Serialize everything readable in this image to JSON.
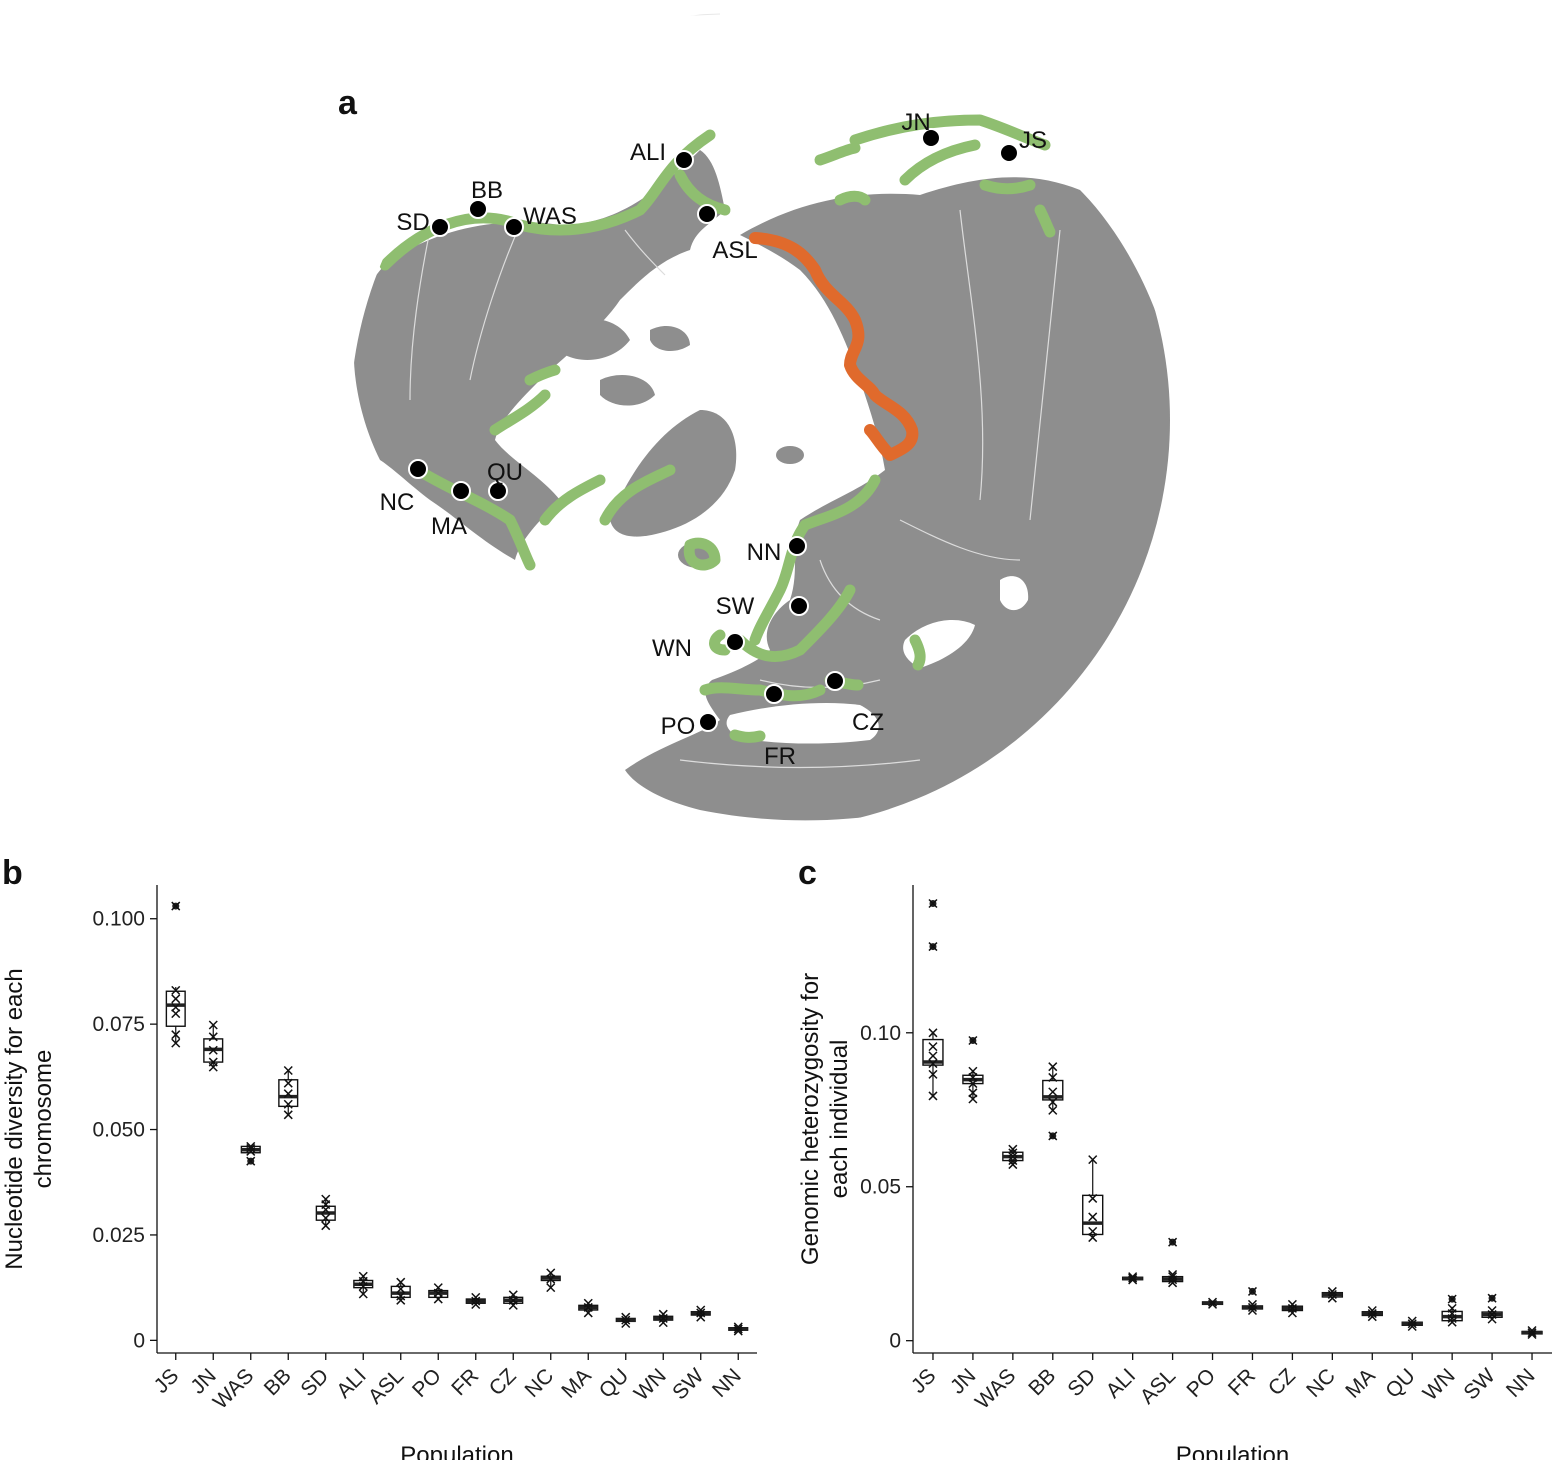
{
  "panels": {
    "a": "a",
    "b": "b",
    "c": "c"
  },
  "map": {
    "sites": [
      "JN",
      "JS",
      "ALI",
      "BB",
      "SD",
      "WAS",
      "ASL",
      "QU",
      "NC",
      "MA",
      "NN",
      "SW",
      "WN",
      "PO",
      "FR",
      "CZ"
    ],
    "colors": {
      "land": "#8e8e8e",
      "ocean": "#ffffff",
      "borders": "#dcdcdc",
      "coast_range": "#8fbe70",
      "barrier": "#e06a2c",
      "site_point": "#000000"
    }
  },
  "chart_data": [
    {
      "id": "b",
      "type": "box",
      "xlabel": "Population",
      "ylabel_lines": [
        "Nucleotide diversity for each",
        "chromosome"
      ],
      "ylim": [
        -0.003,
        0.108
      ],
      "yticks": [
        0,
        0.025,
        0.05,
        0.075,
        0.1
      ],
      "ytick_labels": [
        "0",
        "0.025",
        "0.050",
        "0.075",
        "0.100"
      ],
      "categories": [
        "JS",
        "JN",
        "WAS",
        "BB",
        "SD",
        "ALI",
        "ASL",
        "PO",
        "FR",
        "CZ",
        "NC",
        "MA",
        "QU",
        "WN",
        "SW",
        "NN"
      ],
      "boxes": [
        {
          "q1": 0.0745,
          "median": 0.0795,
          "q3": 0.0828,
          "whislo": 0.0705,
          "whishi": 0.0838,
          "points": [
            0.0705,
            0.0725,
            0.0775,
            0.079,
            0.081,
            0.083
          ],
          "outliers": [
            0.103
          ]
        },
        {
          "q1": 0.066,
          "median": 0.069,
          "q3": 0.0715,
          "whislo": 0.0648,
          "whishi": 0.0748,
          "points": [
            0.0648,
            0.066,
            0.0688,
            0.072,
            0.0748
          ],
          "outliers": []
        },
        {
          "q1": 0.0445,
          "median": 0.0452,
          "q3": 0.046,
          "whislo": 0.0445,
          "whishi": 0.046,
          "points": [
            0.0448,
            0.0455,
            0.046
          ],
          "outliers": [
            0.0425
          ]
        },
        {
          "q1": 0.0555,
          "median": 0.0578,
          "q3": 0.0618,
          "whislo": 0.0535,
          "whishi": 0.064,
          "points": [
            0.0535,
            0.056,
            0.0585,
            0.061,
            0.064
          ],
          "outliers": []
        },
        {
          "q1": 0.0285,
          "median": 0.0302,
          "q3": 0.0318,
          "whislo": 0.0272,
          "whishi": 0.0335,
          "points": [
            0.0272,
            0.029,
            0.031,
            0.0322,
            0.0335
          ],
          "outliers": []
        },
        {
          "q1": 0.0125,
          "median": 0.0133,
          "q3": 0.0142,
          "whislo": 0.011,
          "whishi": 0.0152,
          "points": [
            0.011,
            0.0128,
            0.014,
            0.0152
          ],
          "outliers": []
        },
        {
          "q1": 0.0102,
          "median": 0.0112,
          "q3": 0.0128,
          "whislo": 0.0095,
          "whishi": 0.0138,
          "points": [
            0.0095,
            0.0105,
            0.0122,
            0.0138
          ],
          "outliers": []
        },
        {
          "q1": 0.0102,
          "median": 0.0112,
          "q3": 0.0118,
          "whislo": 0.0098,
          "whishi": 0.0125,
          "points": [
            0.0098,
            0.0112,
            0.0125
          ],
          "outliers": []
        },
        {
          "q1": 0.0088,
          "median": 0.0093,
          "q3": 0.0098,
          "whislo": 0.0085,
          "whishi": 0.0102,
          "points": [
            0.0085,
            0.0093,
            0.0102
          ],
          "outliers": []
        },
        {
          "q1": 0.0088,
          "median": 0.0095,
          "q3": 0.0102,
          "whislo": 0.0083,
          "whishi": 0.0108,
          "points": [
            0.0083,
            0.0095,
            0.0108
          ],
          "outliers": []
        },
        {
          "q1": 0.0142,
          "median": 0.0148,
          "q3": 0.0152,
          "whislo": 0.0125,
          "whishi": 0.016,
          "points": [
            0.0125,
            0.0145,
            0.016
          ],
          "outliers": []
        },
        {
          "q1": 0.0072,
          "median": 0.0078,
          "q3": 0.0083,
          "whislo": 0.0065,
          "whishi": 0.0088,
          "points": [
            0.0065,
            0.0078,
            0.0088
          ],
          "outliers": []
        },
        {
          "q1": 0.0045,
          "median": 0.0048,
          "q3": 0.0052,
          "whislo": 0.004,
          "whishi": 0.0055,
          "points": [
            0.004,
            0.0048,
            0.0055
          ],
          "outliers": []
        },
        {
          "q1": 0.0048,
          "median": 0.0052,
          "q3": 0.0057,
          "whislo": 0.0042,
          "whishi": 0.0062,
          "points": [
            0.0042,
            0.0052,
            0.0062
          ],
          "outliers": []
        },
        {
          "q1": 0.006,
          "median": 0.0065,
          "q3": 0.0068,
          "whislo": 0.0055,
          "whishi": 0.0072,
          "points": [
            0.0055,
            0.0065,
            0.0072
          ],
          "outliers": []
        },
        {
          "q1": 0.0024,
          "median": 0.0027,
          "q3": 0.003,
          "whislo": 0.0022,
          "whishi": 0.0032,
          "points": [
            0.0022,
            0.0027,
            0.0032
          ],
          "outliers": []
        }
      ]
    },
    {
      "id": "c",
      "type": "box",
      "xlabel": "Population",
      "ylabel_lines": [
        "Genomic heterozygosity for",
        "each individual"
      ],
      "ylim": [
        -0.004,
        0.148
      ],
      "yticks": [
        0,
        0.05,
        0.1
      ],
      "ytick_labels": [
        "0",
        "0.05",
        "0.10"
      ],
      "categories": [
        "JS",
        "JN",
        "WAS",
        "BB",
        "SD",
        "ALI",
        "ASL",
        "PO",
        "FR",
        "CZ",
        "NC",
        "MA",
        "QU",
        "WN",
        "SW",
        "NN"
      ],
      "boxes": [
        {
          "q1": 0.0895,
          "median": 0.0905,
          "q3": 0.0978,
          "whislo": 0.0795,
          "whishi": 0.1,
          "points": [
            0.0795,
            0.0865,
            0.09,
            0.0925,
            0.0955,
            0.1
          ],
          "outliers": [
            0.142,
            0.128
          ]
        },
        {
          "q1": 0.0835,
          "median": 0.0848,
          "q3": 0.0862,
          "whislo": 0.0785,
          "whishi": 0.0875,
          "points": [
            0.0785,
            0.0805,
            0.0835,
            0.0855,
            0.0875
          ],
          "outliers": [
            0.0975
          ]
        },
        {
          "q1": 0.0585,
          "median": 0.0598,
          "q3": 0.0612,
          "whislo": 0.0572,
          "whishi": 0.0622,
          "points": [
            0.0572,
            0.0585,
            0.0598,
            0.061,
            0.0622
          ],
          "outliers": []
        },
        {
          "q1": 0.0782,
          "median": 0.0792,
          "q3": 0.0845,
          "whislo": 0.0748,
          "whishi": 0.089,
          "points": [
            0.0748,
            0.0775,
            0.0808,
            0.0855,
            0.089
          ],
          "outliers": [
            0.0665
          ]
        },
        {
          "q1": 0.0345,
          "median": 0.0382,
          "q3": 0.0472,
          "whislo": 0.0335,
          "whishi": 0.0588,
          "points": [
            0.0335,
            0.0355,
            0.0402,
            0.0462,
            0.0588
          ],
          "outliers": []
        },
        {
          "q1": 0.0198,
          "median": 0.0202,
          "q3": 0.0206,
          "whislo": 0.0195,
          "whishi": 0.0209,
          "points": [
            0.0197,
            0.0203,
            0.0208
          ],
          "outliers": []
        },
        {
          "q1": 0.0192,
          "median": 0.02,
          "q3": 0.0208,
          "whislo": 0.0188,
          "whishi": 0.0215,
          "points": [
            0.0188,
            0.0198,
            0.0208,
            0.0215
          ],
          "outliers": [
            0.032
          ]
        },
        {
          "q1": 0.0118,
          "median": 0.0122,
          "q3": 0.0126,
          "whislo": 0.0115,
          "whishi": 0.013,
          "points": [
            0.0118,
            0.0125
          ],
          "outliers": []
        },
        {
          "q1": 0.0103,
          "median": 0.0108,
          "q3": 0.0113,
          "whislo": 0.0098,
          "whishi": 0.0118,
          "points": [
            0.0098,
            0.0108,
            0.0118
          ],
          "outliers": [
            0.016
          ]
        },
        {
          "q1": 0.0098,
          "median": 0.0105,
          "q3": 0.0112,
          "whislo": 0.009,
          "whishi": 0.0118,
          "points": [
            0.009,
            0.0105,
            0.0118
          ],
          "outliers": []
        },
        {
          "q1": 0.0142,
          "median": 0.015,
          "q3": 0.0156,
          "whislo": 0.0138,
          "whishi": 0.016,
          "points": [
            0.0138,
            0.015,
            0.016
          ],
          "outliers": []
        },
        {
          "q1": 0.0082,
          "median": 0.0088,
          "q3": 0.0094,
          "whislo": 0.0078,
          "whishi": 0.0098,
          "points": [
            0.0078,
            0.0088,
            0.0098
          ],
          "outliers": []
        },
        {
          "q1": 0.005,
          "median": 0.0055,
          "q3": 0.006,
          "whislo": 0.0046,
          "whishi": 0.0064,
          "points": [
            0.0046,
            0.0055,
            0.0064
          ],
          "outliers": []
        },
        {
          "q1": 0.0065,
          "median": 0.0078,
          "q3": 0.0095,
          "whislo": 0.006,
          "whishi": 0.011,
          "points": [
            0.006,
            0.0072,
            0.0088,
            0.0105
          ],
          "outliers": [
            0.0135
          ]
        },
        {
          "q1": 0.0076,
          "median": 0.0085,
          "q3": 0.0093,
          "whislo": 0.007,
          "whishi": 0.0098,
          "points": [
            0.007,
            0.0085,
            0.0098
          ],
          "outliers": [
            0.0138
          ]
        },
        {
          "q1": 0.0022,
          "median": 0.0026,
          "q3": 0.003,
          "whislo": 0.002,
          "whishi": 0.0033,
          "points": [
            0.002,
            0.0026,
            0.0033
          ],
          "outliers": []
        }
      ]
    }
  ]
}
